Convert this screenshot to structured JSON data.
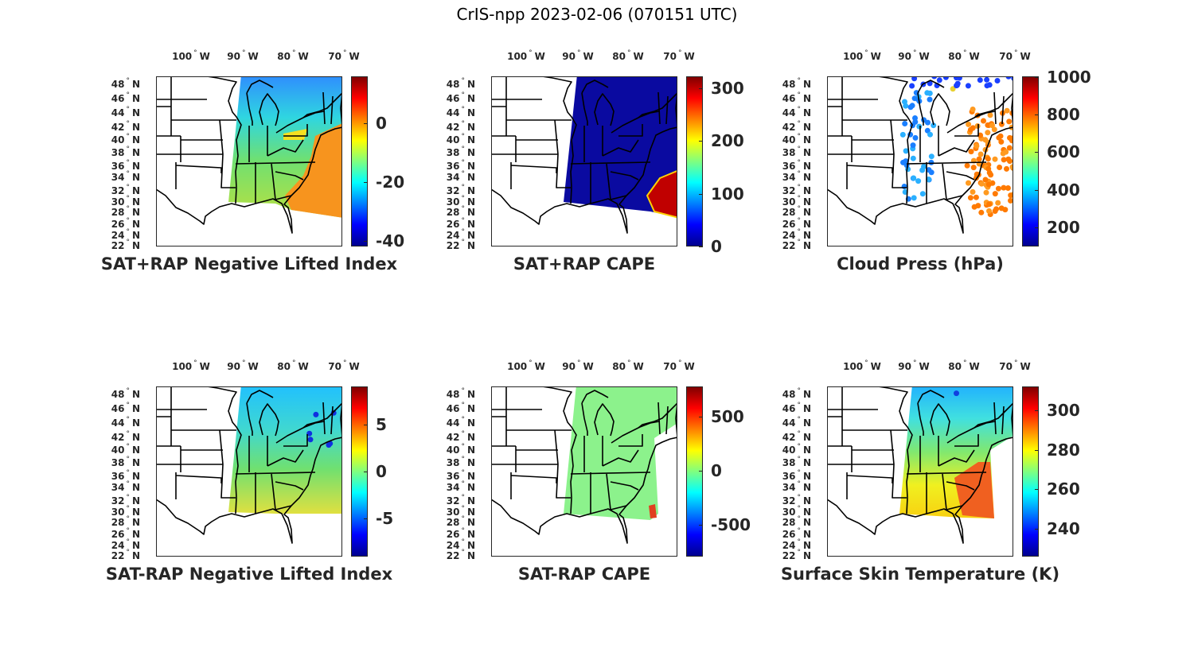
{
  "figure_title": "CrIS-npp 2023-02-06 (070151 UTC)",
  "lon_labels": [
    "100",
    "90",
    "80",
    "70"
  ],
  "lon_hemisphere": "W",
  "lat_labels": [
    "48",
    "46",
    "44",
    "42",
    "40",
    "38",
    "36",
    "34",
    "32",
    "30",
    "28",
    "26",
    "24",
    "22"
  ],
  "lat_hemisphere": "N",
  "colormap": "jet",
  "colormap_colors": [
    "#00008f",
    "#0000ff",
    "#00ffff",
    "#ffff00",
    "#ff0000",
    "#800000"
  ],
  "panels": [
    {
      "title": "SAT+RAP Negative Lifted Index",
      "colorbar": {
        "range": [
          -42,
          16
        ],
        "ticks": [
          {
            "value": 0,
            "label": "0"
          },
          {
            "value": -20,
            "label": "-20"
          },
          {
            "value": -40,
            "label": "-40"
          }
        ]
      }
    },
    {
      "title": "SAT+RAP CAPE",
      "colorbar": {
        "range": [
          0,
          323
        ],
        "ticks": [
          {
            "value": 300,
            "label": "300"
          },
          {
            "value": 200,
            "label": "200"
          },
          {
            "value": 100,
            "label": "100"
          },
          {
            "value": 0,
            "label": "0"
          }
        ]
      }
    },
    {
      "title": "Cloud Press (hPa)",
      "colorbar": {
        "range": [
          97,
          1005
        ],
        "ticks": [
          {
            "value": 1000,
            "label": "1000"
          },
          {
            "value": 800,
            "label": "800"
          },
          {
            "value": 600,
            "label": "600"
          },
          {
            "value": 400,
            "label": "400"
          },
          {
            "value": 200,
            "label": "200"
          }
        ]
      }
    },
    {
      "title": "SAT-RAP Negative Lifted Index",
      "colorbar": {
        "range": [
          -9.1,
          9.1
        ],
        "ticks": [
          {
            "value": 5,
            "label": "5"
          },
          {
            "value": 0,
            "label": "0"
          },
          {
            "value": -5,
            "label": "-5"
          }
        ]
      }
    },
    {
      "title": "SAT-RAP CAPE",
      "colorbar": {
        "range": [
          -794,
          779
        ],
        "ticks": [
          {
            "value": 500,
            "label": "500"
          },
          {
            "value": 0,
            "label": "0"
          },
          {
            "value": -500,
            "label": "-500"
          }
        ]
      }
    },
    {
      "title": "Surface Skin Temperature (K)",
      "colorbar": {
        "range": [
          226,
          312
        ],
        "ticks": [
          {
            "value": 300,
            "label": "300"
          },
          {
            "value": 280,
            "label": "280"
          },
          {
            "value": 260,
            "label": "260"
          },
          {
            "value": 240,
            "label": "240"
          }
        ]
      }
    }
  ]
}
